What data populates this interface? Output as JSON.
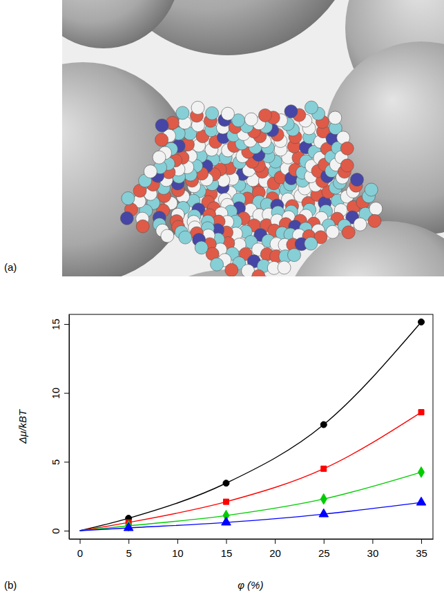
{
  "panel_labels": [
    "(a)",
    "(b)"
  ],
  "chart_data": {
    "type": "line",
    "x_label": "φ (%)",
    "y_label": "Δμ/kBT",
    "xlim": [
      -1.1,
      36.2
    ],
    "ylim": [
      -0.6,
      15.7
    ],
    "xticks": [
      0,
      5,
      10,
      15,
      20,
      25,
      30,
      35
    ],
    "yticks": [
      0,
      5,
      10,
      15
    ],
    "grid": false,
    "series": [
      {
        "type": "line",
        "line_style": "solid",
        "color": "#000000",
        "x": [
          0,
          5,
          15,
          25,
          35
        ],
        "values": [
          0,
          0.9,
          3.45,
          7.7,
          15.15
        ]
      },
      {
        "type": "scatter",
        "marker": "circle",
        "color": "#000000",
        "x": [
          5,
          15,
          25,
          35
        ],
        "values": [
          0.9,
          3.45,
          7.7,
          15.15
        ]
      },
      {
        "type": "line",
        "line_style": "solid",
        "color": "#ff0000",
        "x": [
          0,
          5,
          15,
          25,
          35
        ],
        "values": [
          0,
          0.6,
          2.1,
          4.5,
          8.6
        ]
      },
      {
        "type": "scatter",
        "marker": "square",
        "color": "#ff0000",
        "x": [
          5,
          15,
          25,
          35
        ],
        "values": [
          0.6,
          2.1,
          4.5,
          8.6
        ]
      },
      {
        "type": "line",
        "line_style": "solid",
        "color": "#00cd00",
        "x": [
          0,
          5,
          15,
          25,
          35
        ],
        "values": [
          0,
          0.35,
          1.1,
          2.3,
          4.25
        ]
      },
      {
        "type": "scatter",
        "marker": "diamond",
        "color": "#00cd00",
        "x": [
          5,
          15,
          25,
          35
        ],
        "values": [
          0.35,
          1.1,
          2.3,
          4.25
        ]
      },
      {
        "type": "line",
        "line_style": "solid",
        "color": "#0000ff",
        "x": [
          0,
          5,
          15,
          25,
          35
        ],
        "values": [
          0,
          0.2,
          0.6,
          1.2,
          2.05
        ]
      },
      {
        "type": "scatter",
        "marker": "triangle",
        "color": "#0000ff",
        "x": [
          5,
          15,
          25,
          35
        ],
        "values": [
          0.2,
          0.6,
          1.2,
          2.05
        ]
      }
    ]
  }
}
